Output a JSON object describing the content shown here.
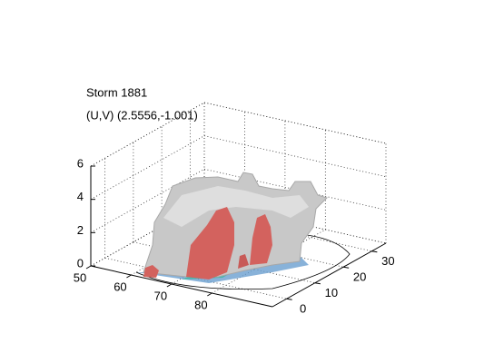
{
  "chart_data": {
    "type": "isosurface3d",
    "title": "Storm 1881",
    "subtitle": "(U,V) (2.5556,-1.001)",
    "xlim": [
      50,
      95
    ],
    "xticks": [
      50,
      60,
      70,
      80
    ],
    "ylim": [
      -5,
      35
    ],
    "yticks": [
      0,
      10,
      20,
      30
    ],
    "zlim": [
      0,
      6
    ],
    "zticks": [
      0,
      2,
      4,
      6
    ],
    "grid": true
  }
}
